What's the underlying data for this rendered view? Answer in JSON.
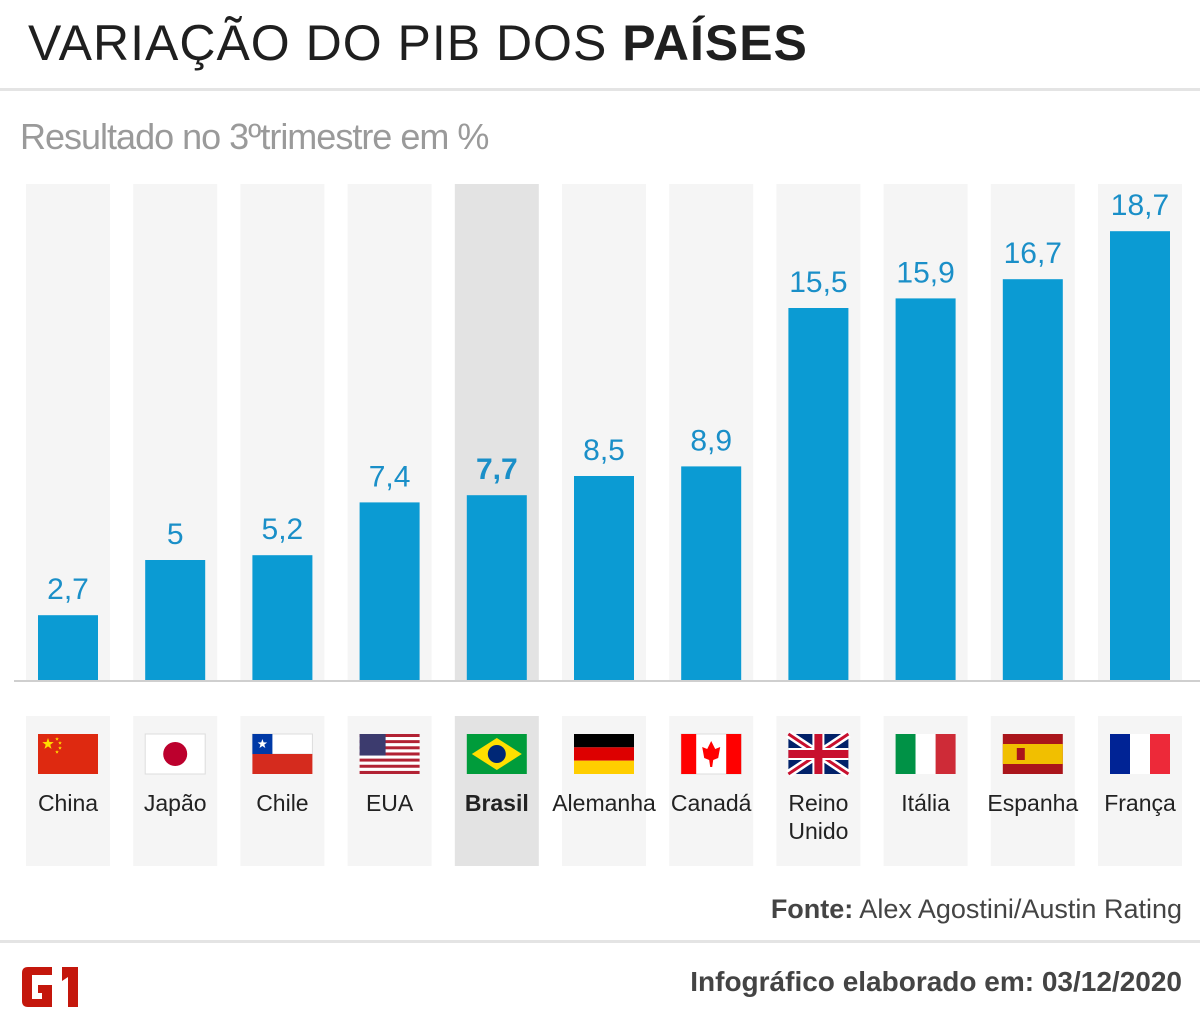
{
  "header": {
    "title_regular": "VARIAÇÃO DO PIB DOS ",
    "title_bold": "PAÍSES",
    "subtitle": "Resultado no 3ºtrimestre em %"
  },
  "colors": {
    "bar": "#0b9bd3",
    "value_label": "#1a8fc8",
    "column_bg": "#f5f5f5",
    "highlight_bg": "#e3e3e3",
    "axis": "#cfcfcf"
  },
  "chart_data": {
    "type": "bar",
    "categories": [
      "China",
      "Japão",
      "Chile",
      "EUA",
      "Brasil",
      "Alemanha",
      "Canadá",
      "Reino Unido",
      "Itália",
      "Espanha",
      "França"
    ],
    "value_labels": [
      "2,7",
      "5",
      "5,2",
      "7,4",
      "7,7",
      "8,5",
      "8,9",
      "15,5",
      "15,9",
      "16,7",
      "18,7"
    ],
    "values": [
      2.7,
      5,
      5.2,
      7.4,
      7.7,
      8.5,
      8.9,
      15.5,
      15.9,
      16.7,
      18.7
    ],
    "highlight": "Brasil",
    "flags": [
      "china-flag-icon",
      "japan-flag-icon",
      "chile-flag-icon",
      "usa-flag-icon",
      "brazil-flag-icon",
      "germany-flag-icon",
      "canada-flag-icon",
      "uk-flag-icon",
      "italy-flag-icon",
      "spain-flag-icon",
      "france-flag-icon"
    ],
    "ylim": [
      0,
      20
    ],
    "grid": false
  },
  "source": {
    "label": "Fonte:",
    "text": " Alex Agostini/Austin Rating"
  },
  "footer": {
    "logo": "G1",
    "text": "Infográfico elaborado em: 03/12/2020"
  }
}
